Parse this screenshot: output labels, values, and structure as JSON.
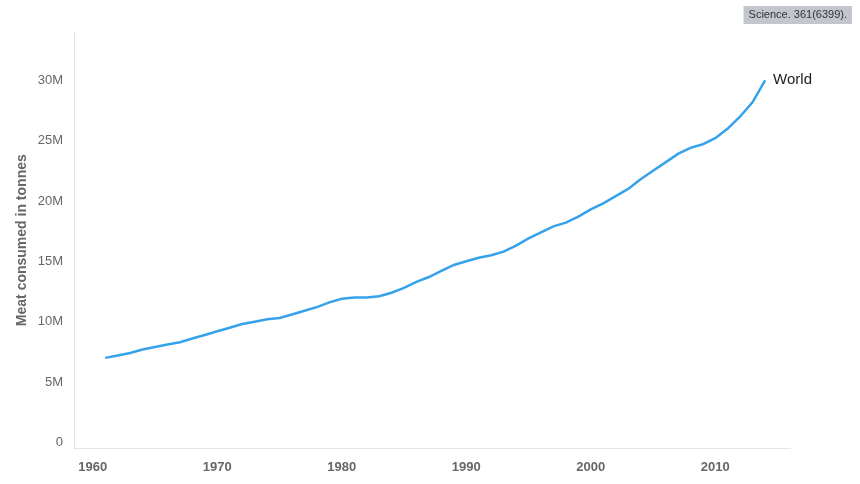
{
  "chart_data": {
    "type": "line",
    "y_label": "Meat consumed in tonnes",
    "annotation": "World",
    "source": "Science. 361(6399).",
    "x": [
      1961,
      1962,
      1963,
      1964,
      1965,
      1966,
      1967,
      1968,
      1969,
      1970,
      1971,
      1972,
      1973,
      1974,
      1975,
      1976,
      1977,
      1978,
      1979,
      1980,
      1981,
      1982,
      1983,
      1984,
      1985,
      1986,
      1987,
      1988,
      1989,
      1990,
      1991,
      1992,
      1993,
      1994,
      1995,
      1996,
      1997,
      1998,
      1999,
      2000,
      2001,
      2002,
      2003,
      2004,
      2005,
      2006,
      2007,
      2008,
      2009,
      2010,
      2011,
      2012,
      2013,
      2014
    ],
    "values": [
      7.0,
      7.2,
      7.4,
      7.7,
      7.9,
      8.1,
      8.3,
      8.6,
      8.9,
      9.2,
      9.5,
      9.8,
      10.0,
      10.2,
      10.3,
      10.6,
      10.9,
      11.2,
      11.6,
      11.9,
      12.0,
      12.0,
      12.1,
      12.4,
      12.8,
      13.3,
      13.7,
      14.2,
      14.7,
      15.0,
      15.3,
      15.5,
      15.8,
      16.3,
      16.9,
      17.4,
      17.9,
      18.2,
      18.7,
      19.3,
      19.8,
      20.4,
      21.0,
      21.8,
      22.5,
      23.2,
      23.9,
      24.4,
      24.7,
      25.2,
      26.0,
      27.0,
      28.2,
      30.0
    ],
    "xlim": [
      1958.5,
      2016
    ],
    "xticks": [
      1960,
      1970,
      1980,
      1990,
      2000,
      2010
    ],
    "ylim": [
      -0.5,
      34
    ],
    "yticks": [
      0,
      {
        "value": 5,
        "label": "5M"
      },
      {
        "value": 10,
        "label": "10M"
      },
      {
        "value": 15,
        "label": "15M"
      },
      {
        "value": 20,
        "label": "20M"
      },
      {
        "value": 25,
        "label": "25M"
      },
      {
        "value": 30,
        "label": "30M"
      }
    ],
    "grid": false
  }
}
